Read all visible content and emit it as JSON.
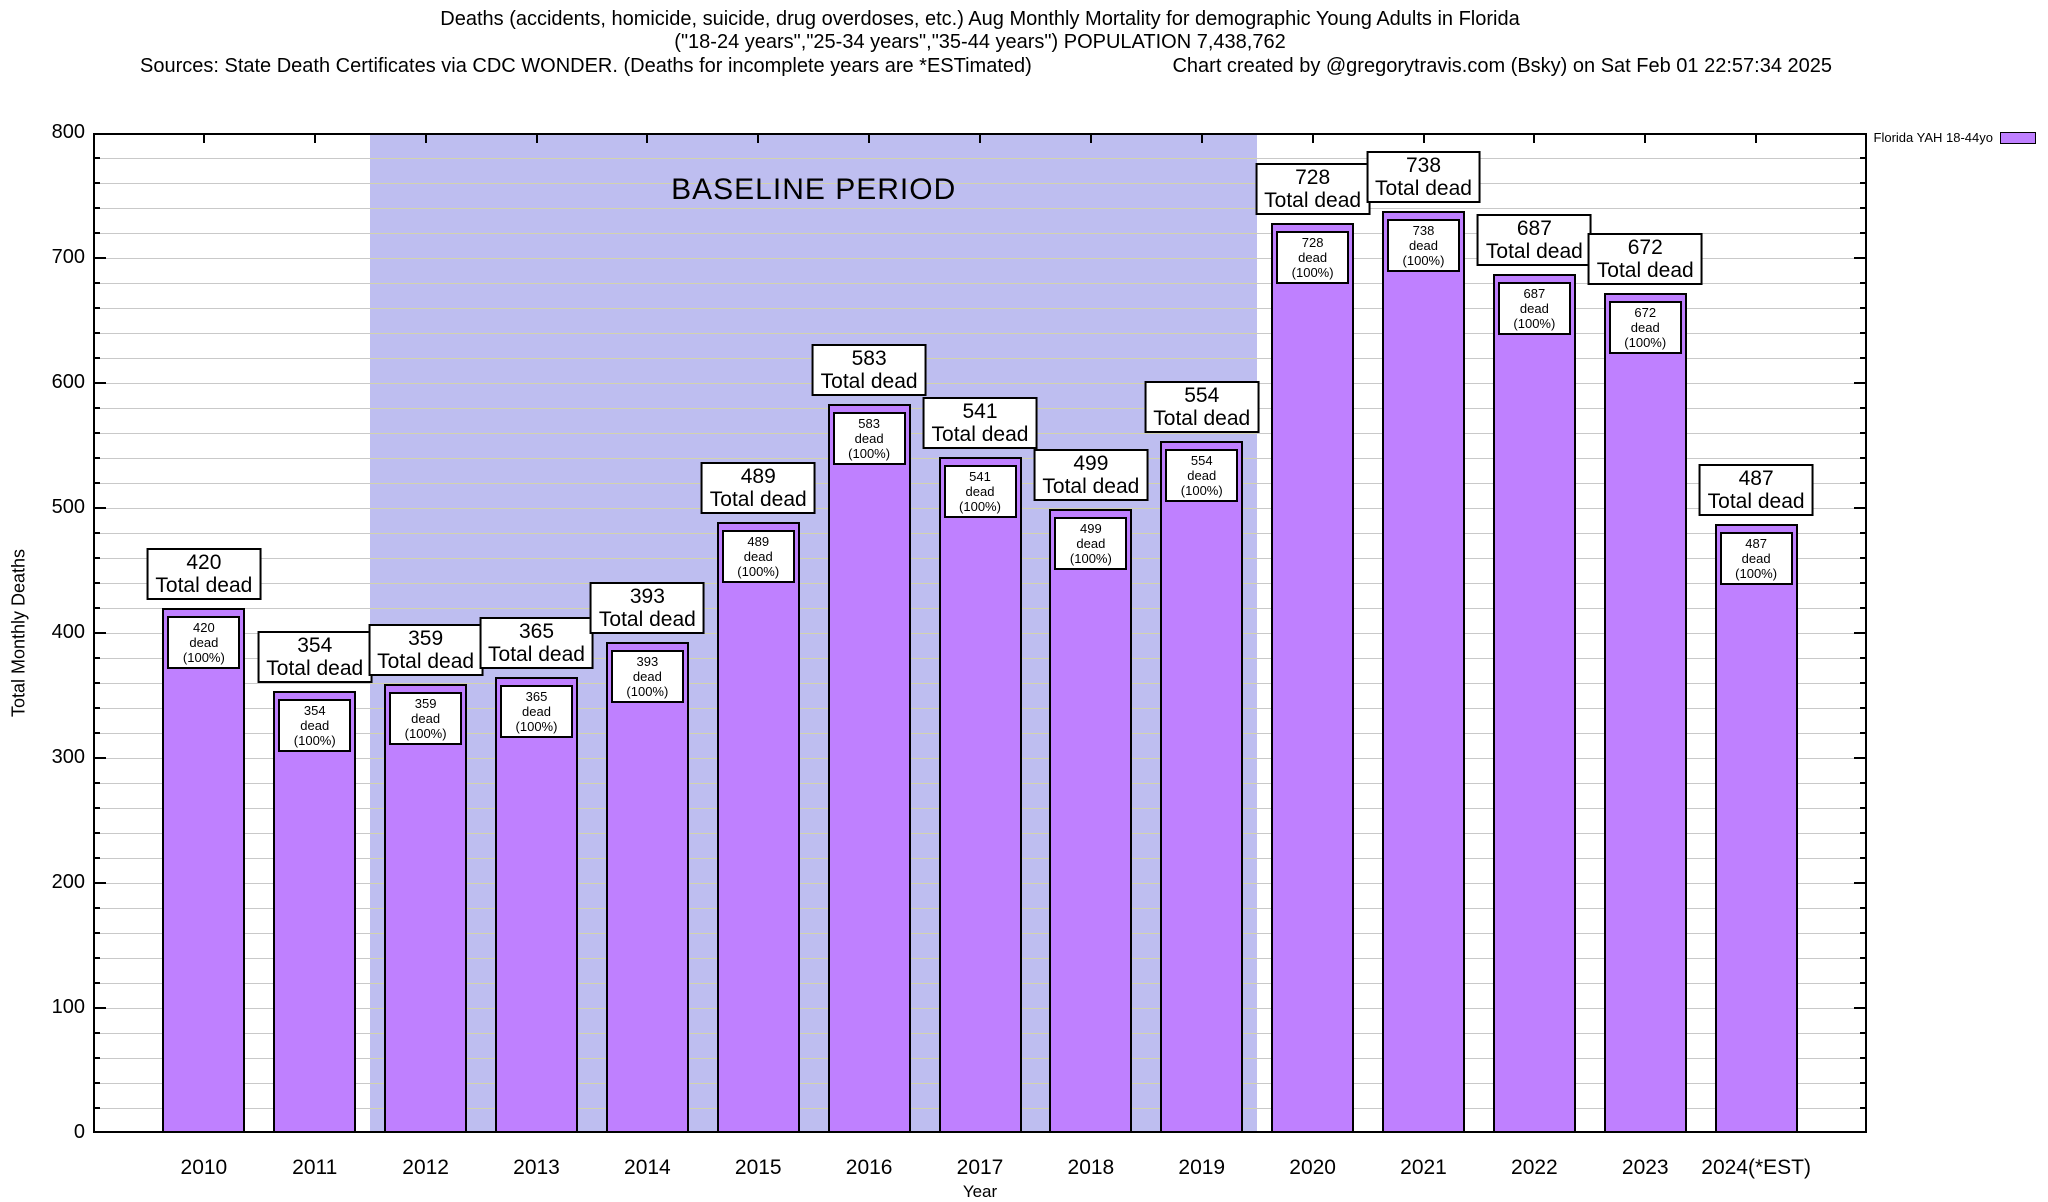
{
  "header": {
    "title_line1": "Deaths (accidents, homicide, suicide, drug overdoses, etc.) Aug Monthly Mortality for demographic Young Adults in Florida",
    "title_line2": "(\"18-24 years\",\"25-34 years\",\"35-44 years\") POPULATION 7,438,762",
    "sources_line": "Sources: State Death Certificates via CDC WONDER. (Deaths for incomplete years are *ESTimated)",
    "credit_line": "Chart created by @gregorytravis.com (Bsky) on Sat Feb 01 22:57:34 2025"
  },
  "legend": {
    "label": "Florida YAH 18-44yo",
    "swatch_color": "#bf80ff"
  },
  "chart_data": {
    "type": "bar",
    "title": "Deaths (accidents, homicide, suicide, drug overdoses, etc.) Aug Monthly Mortality for demographic Young Adults in Florida",
    "subtitle": "(\"18-24 years\",\"25-34 years\",\"35-44 years\") POPULATION 7,438,762",
    "xlabel": "Year",
    "ylabel": "Total Monthly Deaths",
    "ylim": [
      0,
      800
    ],
    "yticks": [
      0,
      100,
      200,
      300,
      400,
      500,
      600,
      700,
      800
    ],
    "minor_grid_step": 20,
    "grid": true,
    "legend_position": "top-right",
    "categories": [
      "2010",
      "2011",
      "2012",
      "2013",
      "2014",
      "2015",
      "2016",
      "2017",
      "2018",
      "2019",
      "2020",
      "2021",
      "2022",
      "2023",
      "2024(*EST)"
    ],
    "values": [
      420,
      354,
      359,
      365,
      393,
      489,
      583,
      541,
      499,
      554,
      728,
      738,
      687,
      672,
      487
    ],
    "series_name": "Florida YAH 18-44yo",
    "bar_color": "#bf80ff",
    "bar_top_label_line2": "Total dead",
    "bar_inner_label_line2": "dead (100%)",
    "baseline_region": {
      "label": "BASELINE PERIOD",
      "start_category": "2012",
      "end_category": "2019",
      "color": "#bebef0"
    }
  }
}
